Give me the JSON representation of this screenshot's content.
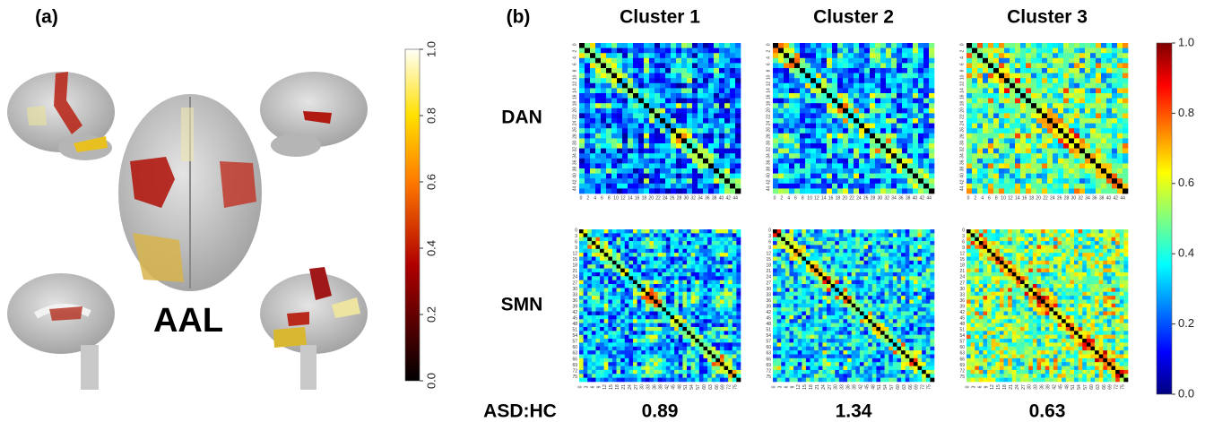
{
  "panel_a": {
    "label": "(a)",
    "atlas": "AAL",
    "colorbar": {
      "lim": [
        0,
        1
      ],
      "ticks": [
        {
          "value": 0,
          "label": "0.0"
        },
        {
          "value": 0.2,
          "label": "0.2"
        },
        {
          "value": 0.4,
          "label": "0.4"
        },
        {
          "value": 0.6,
          "label": "0.6"
        },
        {
          "value": 0.8,
          "label": "0.8"
        },
        {
          "value": 1,
          "label": "1.0"
        }
      ]
    }
  },
  "panel_b": {
    "label": "(b)",
    "clusters": [
      "Cluster 1",
      "Cluster 2",
      "Cluster 3"
    ],
    "networks": [
      {
        "name": "DAN",
        "ticks": [
          0,
          2,
          4,
          6,
          8,
          10,
          12,
          14,
          16,
          18,
          20,
          22,
          24,
          26,
          28,
          30,
          32,
          34,
          36,
          38,
          40,
          42,
          44
        ]
      },
      {
        "name": "SMN",
        "ticks": [
          0,
          3,
          6,
          9,
          12,
          15,
          18,
          21,
          24,
          27,
          30,
          33,
          36,
          39,
          42,
          45,
          48,
          51,
          54,
          57,
          60,
          63,
          66,
          69,
          72,
          75
        ]
      }
    ],
    "ratio_label": "ASD:HC",
    "ratios": [
      0.89,
      1.34,
      0.63
    ],
    "colorbar": {
      "lim": [
        0,
        1
      ],
      "ticks": [
        {
          "value": 0,
          "label": "0.0"
        },
        {
          "value": 0.2,
          "label": "0.2"
        },
        {
          "value": 0.4,
          "label": "0.4"
        },
        {
          "value": 0.6,
          "label": "0.6"
        },
        {
          "value": 0.8,
          "label": "0.8"
        },
        {
          "value": 1,
          "label": "1.0"
        }
      ]
    }
  }
}
